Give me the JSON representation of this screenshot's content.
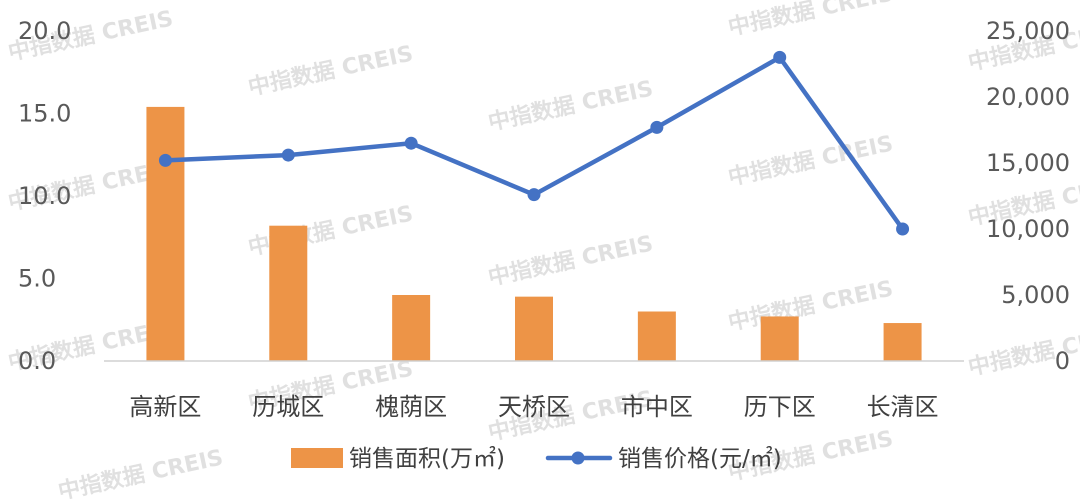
{
  "watermark": "中指数据 CREIS",
  "chart_data": {
    "type": "bar+line",
    "categories": [
      "高新区",
      "历城区",
      "槐荫区",
      "天桥区",
      "市中区",
      "历下区",
      "长清区"
    ],
    "series": [
      {
        "name": "销售面积(万㎡)",
        "type": "bar",
        "axis": "left",
        "color": "#ED9447",
        "values": [
          15.4,
          8.2,
          4.0,
          3.9,
          3.0,
          2.7,
          2.3
        ]
      },
      {
        "name": "销售价格(元/㎡)",
        "type": "line",
        "axis": "right",
        "color": "#4472C4",
        "values": [
          15200,
          15600,
          16500,
          12600,
          17700,
          23000,
          10000
        ]
      }
    ],
    "y_left": {
      "min": 0,
      "max": 20,
      "ticks": [
        0,
        5,
        10,
        15,
        20
      ],
      "tick_labels": [
        "0.0",
        "5.0",
        "10.0",
        "15.0",
        "20.0"
      ]
    },
    "y_right": {
      "min": 0,
      "max": 25000,
      "ticks": [
        0,
        5000,
        10000,
        15000,
        20000,
        25000
      ],
      "tick_labels": [
        "0",
        "5,000",
        "10,000",
        "15,000",
        "20,000",
        "25,000"
      ]
    },
    "grid": false,
    "legend_position": "bottom"
  }
}
